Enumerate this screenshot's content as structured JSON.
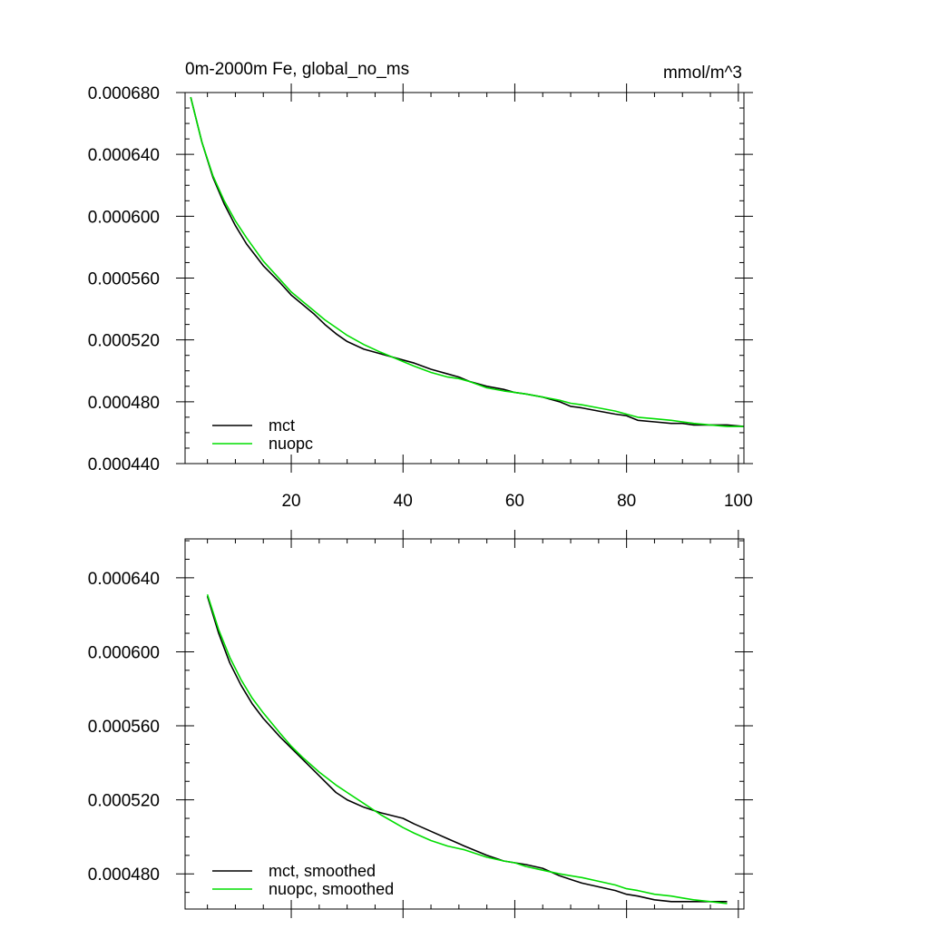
{
  "chart_data": [
    {
      "type": "line",
      "title": "0m-2000m Fe, global_no_ms",
      "units": "mmol/m^3",
      "xlabel": "",
      "ylabel": "",
      "xlim": [
        1,
        101
      ],
      "ylim": [
        0.00044,
        0.00068
      ],
      "x_ticks": [
        20,
        40,
        60,
        80,
        100
      ],
      "x_tick_labels": [
        "20",
        "40",
        "60",
        "80",
        "100"
      ],
      "y_ticks": [
        0.00044,
        0.00048,
        0.00052,
        0.00056,
        0.0006,
        0.00064,
        0.00068
      ],
      "y_tick_labels": [
        "0.000440",
        "0.000480",
        "0.000520",
        "0.000560",
        "0.000600",
        "0.000640",
        "0.000680"
      ],
      "grid": false,
      "legend_position": "bottom-left",
      "x": [
        2,
        4,
        6,
        8,
        10,
        12,
        15,
        18,
        20,
        22,
        24,
        26,
        28,
        30,
        33,
        36,
        40,
        42,
        45,
        48,
        50,
        52,
        55,
        58,
        60,
        62,
        65,
        68,
        70,
        72,
        75,
        78,
        80,
        82,
        85,
        88,
        90,
        92,
        95,
        98,
        101
      ],
      "series": [
        {
          "name": "mct",
          "color": "#000000",
          "values": [
            0.000677,
            0.000648,
            0.000625,
            0.000608,
            0.000594,
            0.000582,
            0.000568,
            0.000557,
            0.000549,
            0.000543,
            0.000537,
            0.00053,
            0.000524,
            0.000519,
            0.000514,
            0.000511,
            0.000507,
            0.000505,
            0.000501,
            0.000498,
            0.000496,
            0.000493,
            0.00049,
            0.000488,
            0.000486,
            0.000485,
            0.000483,
            0.00048,
            0.000477,
            0.000476,
            0.000474,
            0.000472,
            0.000471,
            0.000468,
            0.000467,
            0.000466,
            0.000466,
            0.000465,
            0.000465,
            0.000465,
            0.000464
          ]
        },
        {
          "name": "nuopc",
          "color": "#00dd00",
          "values": [
            0.000677,
            0.000648,
            0.000626,
            0.00061,
            0.000597,
            0.000586,
            0.000571,
            0.000559,
            0.000551,
            0.000545,
            0.000539,
            0.000533,
            0.000528,
            0.000523,
            0.000517,
            0.000512,
            0.000506,
            0.000503,
            0.000499,
            0.000496,
            0.000495,
            0.000493,
            0.000489,
            0.000487,
            0.000486,
            0.000485,
            0.000483,
            0.000481,
            0.000479,
            0.000478,
            0.000476,
            0.000474,
            0.000472,
            0.00047,
            0.000469,
            0.000468,
            0.000467,
            0.000466,
            0.000465,
            0.000464,
            0.000464
          ]
        }
      ]
    },
    {
      "type": "line",
      "title": "",
      "xlabel": "",
      "ylabel": "",
      "xlim": [
        1,
        101
      ],
      "ylim": [
        0.000461,
        0.000661
      ],
      "x_ticks": [
        20,
        40,
        60,
        80,
        100
      ],
      "x_tick_labels": [],
      "y_ticks": [
        0.00048,
        0.00052,
        0.00056,
        0.0006,
        0.00064
      ],
      "y_tick_labels": [
        "0.000480",
        "0.000520",
        "0.000560",
        "0.000600",
        "0.000640"
      ],
      "grid": false,
      "legend_position": "bottom-left",
      "x": [
        5,
        7,
        9,
        11,
        13,
        15,
        18,
        20,
        22,
        25,
        28,
        30,
        33,
        36,
        40,
        42,
        45,
        48,
        51,
        55,
        58,
        60,
        62,
        65,
        68,
        70,
        72,
        75,
        78,
        80,
        82,
        85,
        88,
        90,
        92,
        95,
        98
      ],
      "series": [
        {
          "name": "mct, smoothed",
          "color": "#000000",
          "values": [
            0.00063,
            0.00061,
            0.000594,
            0.000582,
            0.000572,
            0.000564,
            0.000554,
            0.000548,
            0.000542,
            0.000533,
            0.000524,
            0.00052,
            0.000516,
            0.000513,
            0.00051,
            0.000507,
            0.000503,
            0.000499,
            0.000495,
            0.00049,
            0.000487,
            0.000486,
            0.000485,
            0.000483,
            0.000479,
            0.000477,
            0.000475,
            0.000473,
            0.000471,
            0.000469,
            0.000468,
            0.000466,
            0.000465,
            0.000465,
            0.000465,
            0.000465,
            0.000465
          ]
        },
        {
          "name": "nuopc, smoothed",
          "color": "#00dd00",
          "values": [
            0.000631,
            0.000612,
            0.000597,
            0.000585,
            0.000575,
            0.000567,
            0.000556,
            0.000549,
            0.000543,
            0.000535,
            0.000528,
            0.000524,
            0.000518,
            0.000512,
            0.000505,
            0.000502,
            0.000498,
            0.000495,
            0.000493,
            0.000489,
            0.000487,
            0.000486,
            0.000484,
            0.000482,
            0.00048,
            0.000479,
            0.000478,
            0.000476,
            0.000474,
            0.000472,
            0.000471,
            0.000469,
            0.000468,
            0.000467,
            0.000466,
            0.000465,
            0.000464
          ]
        }
      ]
    }
  ]
}
